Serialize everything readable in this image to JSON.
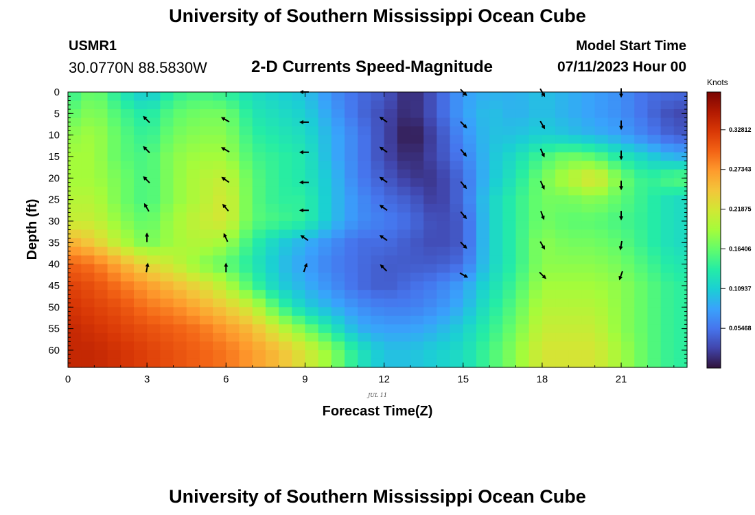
{
  "header": {
    "main_title": "University of Southern Mississippi Ocean Cube",
    "station_id": "USMR1",
    "station_coords": "30.0770N  88.5830W",
    "start_label": "Model Start Time",
    "start_value": "07/11/2023 Hour 00"
  },
  "footer": {
    "title": "University of Southern Mississippi Ocean Cube"
  },
  "chart_data": {
    "type": "heatmap",
    "title": "2-D Currents Speed-Magnitude",
    "xlabel": "Forecast Time(Z)",
    "ylabel": "Depth (ft)",
    "date_annotation": "JUL 11",
    "xlim": [
      0,
      23.5
    ],
    "ylim": [
      0,
      64
    ],
    "x_ticks": [
      0,
      3,
      6,
      9,
      12,
      15,
      18,
      21
    ],
    "x_tick_labels": [
      "0",
      "3",
      "6",
      "9",
      "12",
      "15",
      "18",
      "21"
    ],
    "y_ticks": [
      0,
      5,
      10,
      15,
      20,
      25,
      30,
      35,
      40,
      45,
      50,
      55,
      60
    ],
    "y_tick_labels": [
      "0",
      "5",
      "10",
      "15",
      "20",
      "25",
      "30",
      "35",
      "40",
      "45",
      "50",
      "55",
      "60"
    ],
    "colorbar": {
      "title": "Knots",
      "range": [
        0,
        0.38
      ],
      "tick_values": [
        0.05468,
        0.10937,
        0.16406,
        0.21875,
        0.27343,
        0.32812
      ],
      "tick_labels": [
        "0.05468",
        "0.10937",
        "0.16406",
        "0.21875",
        "0.27343",
        "0.32812"
      ],
      "colors": [
        "#30123b",
        "#4145ab",
        "#4675ed",
        "#39a2fc",
        "#1bcfd4",
        "#24eca6",
        "#61fc6c",
        "#a4fc3b",
        "#d1e834",
        "#f3c63a",
        "#fe9b2d",
        "#f36315",
        "#d93806",
        "#b11901",
        "#7a0402"
      ]
    },
    "time_hours": [
      0,
      1,
      2,
      3,
      4,
      5,
      6,
      7,
      8,
      9,
      10,
      11,
      12,
      13,
      14,
      15,
      16,
      17,
      18,
      19,
      20,
      21,
      22,
      23
    ],
    "depths_ft": [
      0,
      5,
      10,
      15,
      20,
      25,
      30,
      35,
      40,
      45,
      50,
      55,
      60
    ],
    "speed_knots": [
      [
        0.14,
        0.17,
        0.13,
        0.1,
        0.14,
        0.15,
        0.14,
        0.12,
        0.11,
        0.1,
        0.07,
        0.05,
        0.04,
        0.01,
        0.04,
        0.08,
        0.09,
        0.09,
        0.1,
        0.09,
        0.08,
        0.07,
        0.05,
        0.05
      ],
      [
        0.16,
        0.18,
        0.15,
        0.13,
        0.16,
        0.17,
        0.17,
        0.13,
        0.12,
        0.11,
        0.08,
        0.05,
        0.03,
        0.01,
        0.04,
        0.08,
        0.1,
        0.09,
        0.1,
        0.09,
        0.08,
        0.07,
        0.05,
        0.03
      ],
      [
        0.18,
        0.19,
        0.16,
        0.14,
        0.17,
        0.18,
        0.18,
        0.14,
        0.13,
        0.12,
        0.09,
        0.06,
        0.03,
        0.0,
        0.03,
        0.07,
        0.1,
        0.1,
        0.11,
        0.1,
        0.09,
        0.08,
        0.06,
        0.04
      ],
      [
        0.19,
        0.19,
        0.16,
        0.15,
        0.18,
        0.19,
        0.19,
        0.15,
        0.14,
        0.13,
        0.09,
        0.06,
        0.03,
        0.01,
        0.03,
        0.06,
        0.1,
        0.12,
        0.15,
        0.17,
        0.16,
        0.13,
        0.11,
        0.09
      ],
      [
        0.19,
        0.19,
        0.17,
        0.15,
        0.18,
        0.2,
        0.21,
        0.16,
        0.14,
        0.13,
        0.1,
        0.06,
        0.04,
        0.02,
        0.02,
        0.05,
        0.1,
        0.13,
        0.17,
        0.2,
        0.23,
        0.17,
        0.14,
        0.16
      ],
      [
        0.2,
        0.2,
        0.17,
        0.15,
        0.18,
        0.2,
        0.22,
        0.16,
        0.14,
        0.14,
        0.1,
        0.07,
        0.05,
        0.04,
        0.02,
        0.05,
        0.11,
        0.14,
        0.17,
        0.17,
        0.18,
        0.16,
        0.14,
        0.12
      ],
      [
        0.21,
        0.21,
        0.18,
        0.16,
        0.19,
        0.21,
        0.22,
        0.16,
        0.15,
        0.14,
        0.1,
        0.07,
        0.06,
        0.05,
        0.03,
        0.04,
        0.11,
        0.14,
        0.17,
        0.16,
        0.16,
        0.15,
        0.14,
        0.12
      ],
      [
        0.26,
        0.24,
        0.2,
        0.17,
        0.19,
        0.2,
        0.19,
        0.14,
        0.11,
        0.09,
        0.07,
        0.05,
        0.05,
        0.04,
        0.03,
        0.04,
        0.11,
        0.14,
        0.18,
        0.17,
        0.17,
        0.16,
        0.14,
        0.12
      ],
      [
        0.3,
        0.29,
        0.26,
        0.23,
        0.21,
        0.18,
        0.16,
        0.13,
        0.1,
        0.08,
        0.06,
        0.05,
        0.04,
        0.04,
        0.04,
        0.05,
        0.11,
        0.14,
        0.18,
        0.18,
        0.18,
        0.17,
        0.15,
        0.13
      ],
      [
        0.32,
        0.31,
        0.29,
        0.27,
        0.25,
        0.23,
        0.2,
        0.15,
        0.11,
        0.09,
        0.07,
        0.05,
        0.04,
        0.05,
        0.06,
        0.08,
        0.12,
        0.15,
        0.19,
        0.19,
        0.19,
        0.18,
        0.16,
        0.14
      ],
      [
        0.33,
        0.32,
        0.31,
        0.29,
        0.28,
        0.26,
        0.24,
        0.21,
        0.15,
        0.11,
        0.09,
        0.07,
        0.06,
        0.06,
        0.07,
        0.09,
        0.13,
        0.16,
        0.2,
        0.2,
        0.2,
        0.18,
        0.16,
        0.14
      ],
      [
        0.34,
        0.33,
        0.32,
        0.31,
        0.3,
        0.29,
        0.27,
        0.25,
        0.21,
        0.17,
        0.13,
        0.09,
        0.08,
        0.08,
        0.09,
        0.11,
        0.14,
        0.17,
        0.21,
        0.21,
        0.21,
        0.18,
        0.16,
        0.14
      ],
      [
        0.34,
        0.34,
        0.33,
        0.32,
        0.31,
        0.3,
        0.29,
        0.27,
        0.25,
        0.22,
        0.18,
        0.13,
        0.1,
        0.1,
        0.11,
        0.12,
        0.15,
        0.18,
        0.22,
        0.22,
        0.22,
        0.19,
        0.16,
        0.14
      ]
    ],
    "vectors": [
      {
        "t": 3,
        "depths": [
          6.5,
          13.5,
          20.5,
          27,
          34,
          41
        ],
        "angles": [
          -45,
          -45,
          -45,
          -30,
          0,
          10
        ]
      },
      {
        "t": 6,
        "depths": [
          6.5,
          13.5,
          20.5,
          27,
          34,
          41
        ],
        "angles": [
          -60,
          -60,
          -55,
          -40,
          -25,
          0
        ]
      },
      {
        "t": 9,
        "depths": [
          0,
          7,
          14,
          21,
          27.5,
          34,
          41
        ],
        "angles": [
          -90,
          -90,
          -90,
          -90,
          -90,
          -55,
          20
        ]
      },
      {
        "t": 12,
        "depths": [
          6.5,
          13.5,
          20.5,
          27,
          34,
          41
        ],
        "angles": [
          -55,
          -55,
          -55,
          -55,
          -55,
          -45
        ]
      },
      {
        "t": 15,
        "depths": [
          0,
          7.5,
          14,
          21.5,
          28.5,
          35.5,
          42.5
        ],
        "angles": [
          135,
          135,
          140,
          140,
          140,
          135,
          120
        ]
      },
      {
        "t": 18,
        "depths": [
          0,
          7.5,
          14,
          21.5,
          28.5,
          35.5,
          42.5
        ],
        "angles": [
          150,
          150,
          155,
          155,
          160,
          150,
          135
        ]
      },
      {
        "t": 21,
        "depths": [
          0,
          7.5,
          14.5,
          21.5,
          28.5,
          35.5,
          42.5
        ],
        "angles": [
          180,
          180,
          180,
          180,
          180,
          190,
          200
        ]
      }
    ]
  }
}
